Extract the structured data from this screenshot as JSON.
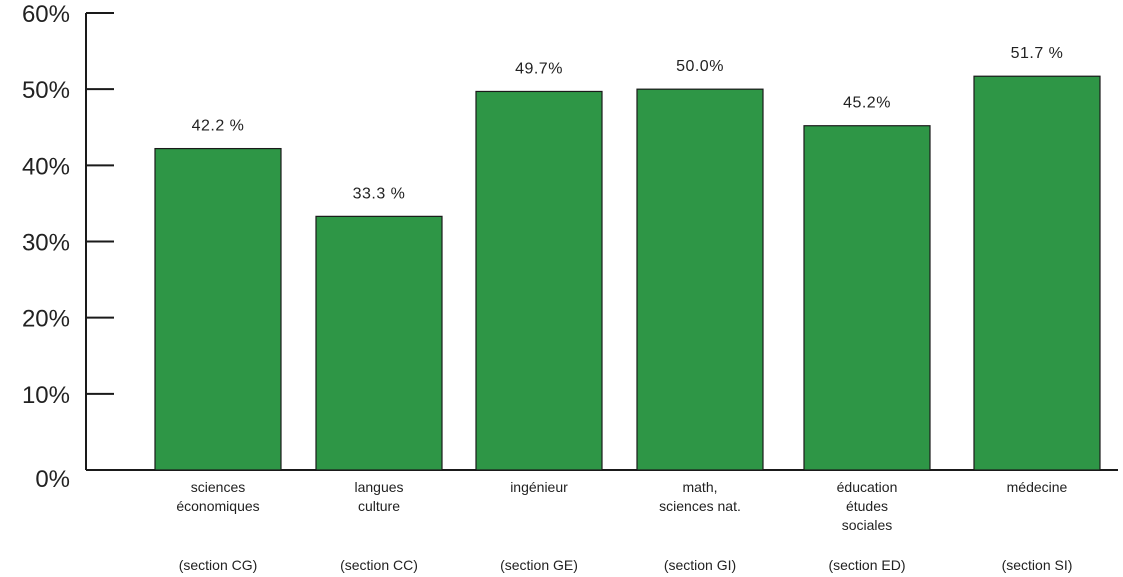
{
  "chart_data": {
    "type": "bar",
    "categories": [
      [
        "sciences",
        "économiques"
      ],
      [
        "langues",
        "culture"
      ],
      [
        "ingénieur"
      ],
      [
        "math,",
        "sciences nat."
      ],
      [
        "éducation",
        "études",
        "sociales"
      ],
      [
        "médecine"
      ]
    ],
    "sections": [
      "(section CG)",
      "(section CC)",
      "(section GE)",
      "(section GI)",
      "(section ED)",
      "(section SI)"
    ],
    "values": [
      42.2,
      33.3,
      49.7,
      50.0,
      45.2,
      51.7
    ],
    "value_labels": [
      "42.2 %",
      "33.3 %",
      "49.7%",
      "50.0%",
      "45.2%",
      "51.7 %"
    ],
    "yticks": [
      "0%",
      "10%",
      "20%",
      "30%",
      "40%",
      "50%",
      "60%"
    ],
    "ylim": [
      0,
      60
    ],
    "bar_color": "#2e9646",
    "bar_edge_color": "#1a1a1a",
    "axis_color": "#1a1a1a",
    "grid": false,
    "legend": "none"
  }
}
